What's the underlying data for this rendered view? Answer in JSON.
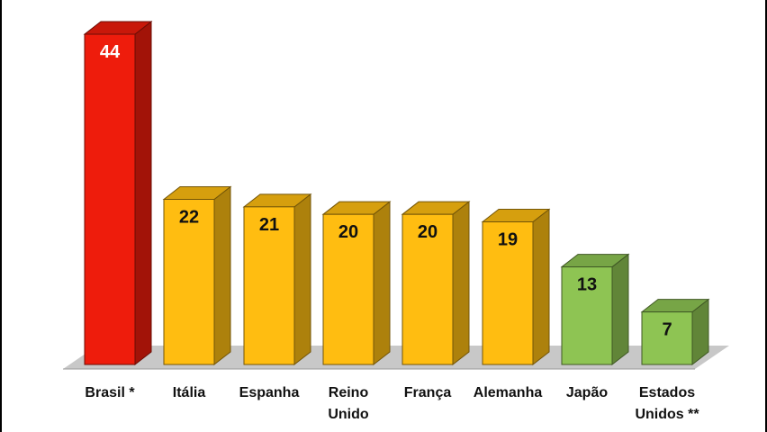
{
  "chart_data": {
    "type": "bar",
    "title": "",
    "xlabel": "",
    "ylabel": "",
    "ylim": [
      0,
      44
    ],
    "grid": false,
    "legend": "none",
    "categories": [
      [
        "Brasil *"
      ],
      [
        "Itália"
      ],
      [
        "Espanha"
      ],
      [
        "Reino",
        "Unido"
      ],
      [
        "França"
      ],
      [
        "Alemanha"
      ],
      [
        "Japão"
      ],
      [
        "Estados",
        "Unidos **"
      ]
    ],
    "values": [
      44,
      22,
      21,
      20,
      20,
      19,
      13,
      7
    ],
    "bar_colors": [
      "#ee1c0c",
      "#ffbd11",
      "#ffbd11",
      "#ffbd11",
      "#ffbd11",
      "#ffbd11",
      "#8ec453",
      "#8ec453"
    ],
    "label_colors": [
      "#ffffff",
      "#111111",
      "#111111",
      "#111111",
      "#111111",
      "#111111",
      "#111111",
      "#111111"
    ]
  }
}
